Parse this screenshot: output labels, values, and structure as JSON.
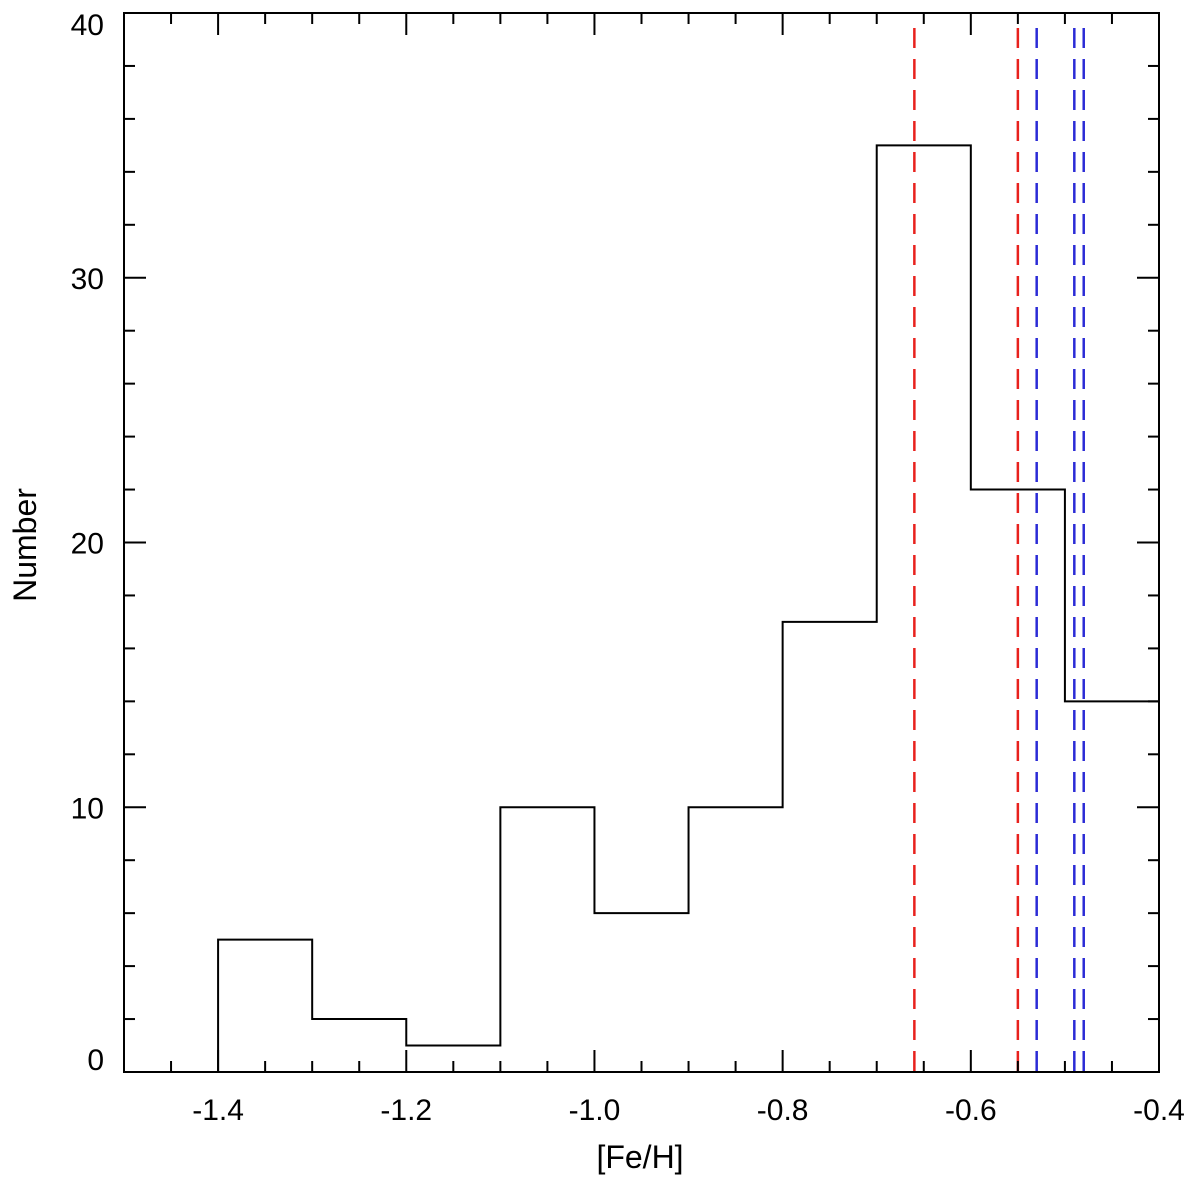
{
  "chart_data": {
    "type": "histogram",
    "xlabel": "[Fe/H]",
    "ylabel": "Number",
    "xlim": [
      -1.5,
      -0.4
    ],
    "ylim": [
      0,
      40
    ],
    "x_ticks": [
      "-1.4",
      "-1.2",
      "-1.0",
      "-0.8",
      "-0.6",
      "-0.4"
    ],
    "y_ticks": [
      "0",
      "10",
      "20",
      "30",
      "40"
    ],
    "bins": [
      {
        "x0": -1.4,
        "x1": -1.3,
        "count": 5
      },
      {
        "x0": -1.3,
        "x1": -1.2,
        "count": 2
      },
      {
        "x0": -1.2,
        "x1": -1.1,
        "count": 1
      },
      {
        "x0": -1.1,
        "x1": -1.0,
        "count": 10
      },
      {
        "x0": -1.0,
        "x1": -0.9,
        "count": 6
      },
      {
        "x0": -0.9,
        "x1": -0.8,
        "count": 10
      },
      {
        "x0": -0.8,
        "x1": -0.7,
        "count": 17
      },
      {
        "x0": -0.7,
        "x1": -0.6,
        "count": 35
      },
      {
        "x0": -0.6,
        "x1": -0.5,
        "count": 22
      },
      {
        "x0": -0.5,
        "x1": -0.4,
        "count": 14
      }
    ],
    "reference_lines": [
      {
        "x": -0.66,
        "color": "#e8211d"
      },
      {
        "x": -0.55,
        "color": "#e8211d"
      },
      {
        "x": -0.53,
        "color": "#2b2bd6"
      },
      {
        "x": -0.49,
        "color": "#2b2bd6"
      },
      {
        "x": -0.48,
        "color": "#2b2bd6"
      }
    ],
    "grid": false,
    "colors": {
      "histogram": "#000000",
      "axes": "#000000"
    }
  }
}
